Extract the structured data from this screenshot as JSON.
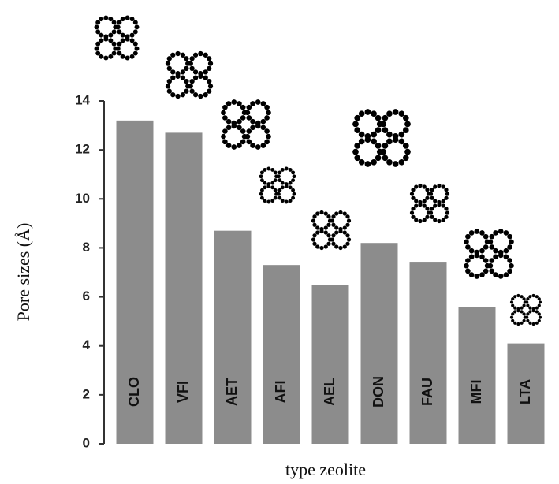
{
  "chart_data": {
    "type": "bar",
    "x_label": "type zeolite",
    "y_label": "Pore sizes (Å)",
    "categories": [
      "CLO",
      "VFI",
      "AET",
      "AFI",
      "AEL",
      "DON",
      "FAU",
      "MFI",
      "LTA"
    ],
    "values": [
      13.2,
      12.7,
      8.7,
      7.3,
      6.5,
      8.2,
      7.4,
      5.6,
      4.1
    ],
    "color": "#8c8c8c",
    "ylim": [
      0,
      14
    ],
    "yticks": [
      0,
      2,
      4,
      6,
      8,
      10,
      12,
      14
    ]
  }
}
